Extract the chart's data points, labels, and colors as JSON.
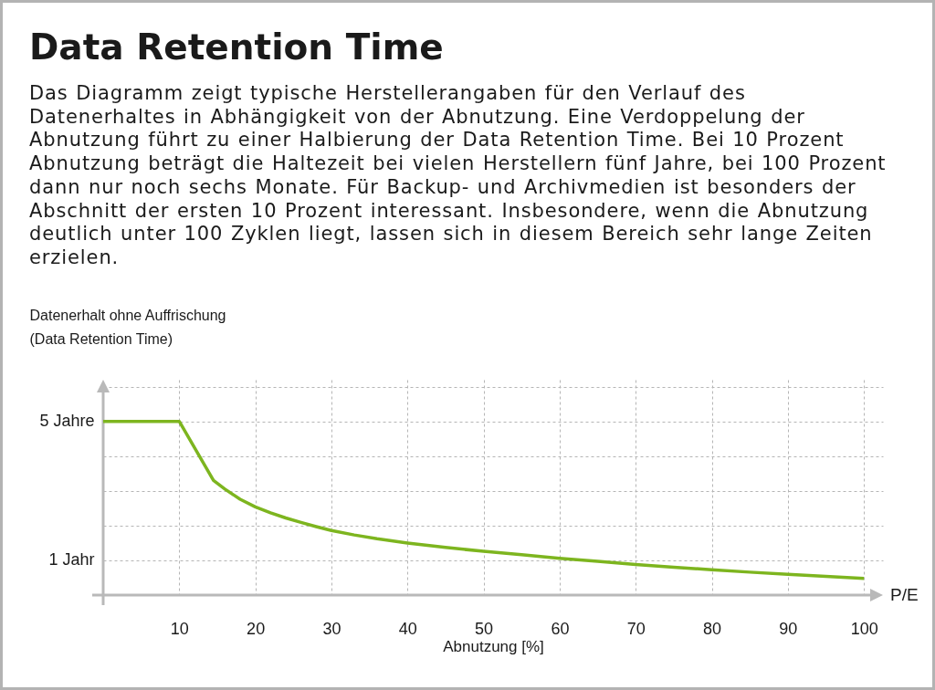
{
  "chart_data": {
    "type": "line",
    "title": "Data Retention Time",
    "subtitle": "Das Diagramm zeigt typische Herstellerangaben für den Verlauf des Datenerhaltes in Abhängigkeit von der Abnutzung. Eine Verdoppelung der Abnutzung führt zu einer Halbierung der Data Retention Time. Bei 10 Prozent Abnutzung beträgt die Haltezeit bei vielen Herstellern fünf Jahre, bei 100 Prozent dann nur noch sechs Monate. Für Backup- und Archivmedien ist besonders der Abschnitt der ersten 10 Prozent interessant. Insbesondere, wenn die Abnutzung deutlich unter 100 Zyklen liegt, lassen sich in diesem Bereich sehr lange Zeiten erzielen.",
    "xlabel": "Abnutzung [%]",
    "ylabel": "Datenerhalt ohne Auffrischung\n(Data Retention Time)",
    "annotations": [
      "P/E"
    ],
    "x": [
      0,
      10,
      14.5,
      16,
      18,
      20,
      22,
      24,
      26,
      28,
      30,
      33,
      36,
      40,
      45,
      50,
      55,
      60,
      65,
      70,
      75,
      80,
      85,
      90,
      95,
      100
    ],
    "series": [
      {
        "color": "#7db51f",
        "values": [
          5,
          5,
          3.3,
          3.05,
          2.76,
          2.54,
          2.37,
          2.22,
          2.09,
          1.97,
          1.86,
          1.73,
          1.62,
          1.5,
          1.37,
          1.26,
          1.16,
          1.06,
          0.97,
          0.88,
          0.8,
          0.73,
          0.66,
          0.6,
          0.54,
          0.48
        ]
      }
    ],
    "xlim": [
      0,
      102.5
    ],
    "ylim": [
      0,
      6.2
    ],
    "xticks": [
      10,
      20,
      30,
      40,
      50,
      60,
      70,
      80,
      90,
      100
    ],
    "yticks": [
      {
        "value": 1,
        "label": "1 Jahr"
      },
      {
        "value": 2,
        "label": null
      },
      {
        "value": 3,
        "label": null
      },
      {
        "value": 4,
        "label": null
      },
      {
        "value": 5,
        "label": "5 Jahre"
      },
      {
        "value": 6,
        "label": null
      }
    ],
    "grid": true
  }
}
